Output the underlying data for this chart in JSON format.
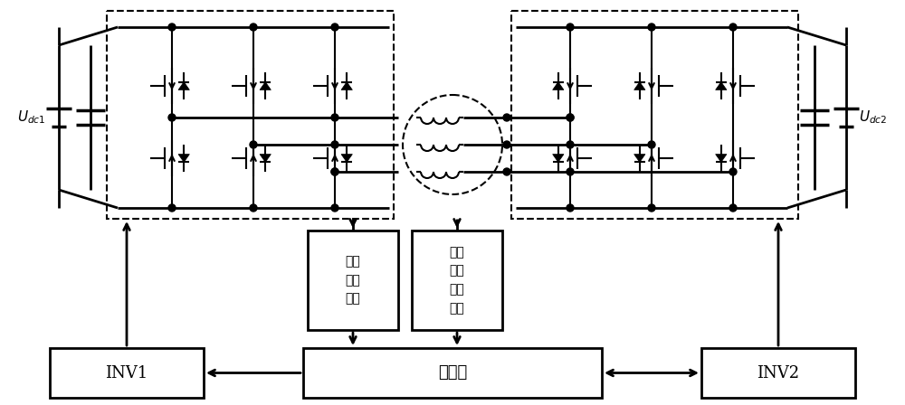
{
  "bg_color": "#ffffff",
  "line_color": "#000000",
  "fig_width": 10.0,
  "fig_height": 4.48,
  "dpi": 100,
  "inv1_label": "INV1",
  "inv2_label": "INV2",
  "controller_label": "控制器",
  "speed_label": "转速\n信号\n采集",
  "voltage_label": "电压\n电流\n信号\n采集",
  "udc1_label": "$U_{dc1}$",
  "udc2_label": "$U_{dc2}$"
}
